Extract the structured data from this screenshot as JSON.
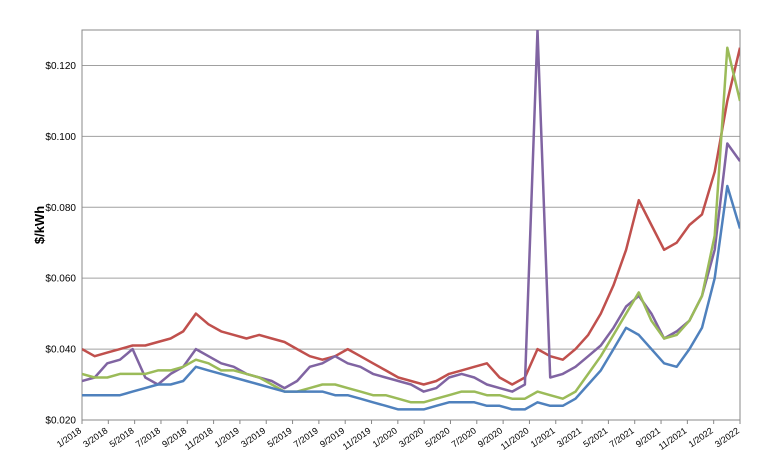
{
  "chart_data": {
    "type": "line",
    "title": "",
    "xlabel": "",
    "ylabel": "$/kWh",
    "ylim": [
      0.02,
      0.13
    ],
    "yticks": [
      "$0.020",
      "$0.040",
      "$0.060",
      "$0.080",
      "$0.100",
      "$0.120"
    ],
    "grid": "horizontal",
    "legend": "none",
    "x": [
      "2018-01",
      "2018-02",
      "2018-03",
      "2018-04",
      "2018-05",
      "2018-06",
      "2018-07",
      "2018-08",
      "2018-09",
      "2018-10",
      "2018-11",
      "2018-12",
      "2019-01",
      "2019-02",
      "2019-03",
      "2019-04",
      "2019-05",
      "2019-06",
      "2019-07",
      "2019-08",
      "2019-09",
      "2019-10",
      "2019-11",
      "2019-12",
      "2020-01",
      "2020-02",
      "2020-03",
      "2020-04",
      "2020-05",
      "2020-06",
      "2020-07",
      "2020-08",
      "2020-09",
      "2020-10",
      "2020-11",
      "2020-12",
      "2021-01",
      "2021-02",
      "2021-03",
      "2021-04",
      "2021-05",
      "2021-06",
      "2021-07",
      "2021-08",
      "2021-09",
      "2021-10",
      "2021-11",
      "2021-12",
      "2022-01",
      "2022-02",
      "2022-03",
      "2022-04",
      "2022-05"
    ],
    "xticks": [
      "1/2018",
      "3/2018",
      "5/2018",
      "7/2018",
      "9/2018",
      "11/2018",
      "1/2019",
      "3/2019",
      "5/2019",
      "7/2019",
      "9/2019",
      "11/2019",
      "1/2020",
      "3/2020",
      "5/2020",
      "7/2020",
      "9/2020",
      "11/2020",
      "1/2021",
      "3/2021",
      "5/2021",
      "7/2021",
      "9/2021",
      "11/2021",
      "1/2022",
      "3/2022"
    ],
    "series": [
      {
        "color": "#c0504d",
        "values": [
          0.04,
          0.038,
          0.039,
          0.04,
          0.041,
          0.041,
          0.042,
          0.043,
          0.045,
          0.05,
          0.047,
          0.045,
          0.044,
          0.043,
          0.044,
          0.043,
          0.042,
          0.04,
          0.038,
          0.037,
          0.038,
          0.04,
          0.038,
          0.036,
          0.034,
          0.032,
          0.031,
          0.03,
          0.031,
          0.033,
          0.034,
          0.035,
          0.036,
          0.032,
          0.03,
          0.032,
          0.04,
          0.038,
          0.037,
          0.04,
          0.044,
          0.05,
          0.058,
          0.068,
          0.082,
          0.075,
          0.068,
          0.07,
          0.075,
          0.078,
          0.09,
          0.11,
          0.125
        ]
      },
      {
        "color": "#8064a2",
        "values": [
          0.031,
          0.032,
          0.036,
          0.037,
          0.04,
          0.032,
          0.03,
          0.033,
          0.035,
          0.04,
          0.038,
          0.036,
          0.035,
          0.033,
          0.032,
          0.031,
          0.029,
          0.031,
          0.035,
          0.036,
          0.038,
          0.036,
          0.035,
          0.033,
          0.032,
          0.031,
          0.03,
          0.028,
          0.029,
          0.032,
          0.033,
          0.032,
          0.03,
          0.029,
          0.028,
          0.03,
          0.13,
          0.032,
          0.033,
          0.035,
          0.038,
          0.041,
          0.046,
          0.052,
          0.055,
          0.05,
          0.043,
          0.045,
          0.048,
          0.055,
          0.068,
          0.098,
          0.093
        ]
      },
      {
        "color": "#9bbb59",
        "values": [
          0.033,
          0.032,
          0.032,
          0.033,
          0.033,
          0.033,
          0.034,
          0.034,
          0.035,
          0.037,
          0.036,
          0.034,
          0.034,
          0.033,
          0.032,
          0.03,
          0.028,
          0.028,
          0.029,
          0.03,
          0.03,
          0.029,
          0.028,
          0.027,
          0.027,
          0.026,
          0.025,
          0.025,
          0.026,
          0.027,
          0.028,
          0.028,
          0.027,
          0.027,
          0.026,
          0.026,
          0.028,
          0.027,
          0.026,
          0.028,
          0.033,
          0.038,
          0.044,
          0.05,
          0.056,
          0.048,
          0.043,
          0.044,
          0.048,
          0.055,
          0.072,
          0.125,
          0.11
        ]
      },
      {
        "color": "#4f81bd",
        "values": [
          0.027,
          0.027,
          0.027,
          0.027,
          0.028,
          0.029,
          0.03,
          0.03,
          0.031,
          0.035,
          0.034,
          0.033,
          0.032,
          0.031,
          0.03,
          0.029,
          0.028,
          0.028,
          0.028,
          0.028,
          0.027,
          0.027,
          0.026,
          0.025,
          0.024,
          0.023,
          0.023,
          0.023,
          0.024,
          0.025,
          0.025,
          0.025,
          0.024,
          0.024,
          0.023,
          0.023,
          0.025,
          0.024,
          0.024,
          0.026,
          0.03,
          0.034,
          0.04,
          0.046,
          0.044,
          0.04,
          0.036,
          0.035,
          0.04,
          0.046,
          0.06,
          0.086,
          0.074
        ]
      }
    ]
  }
}
